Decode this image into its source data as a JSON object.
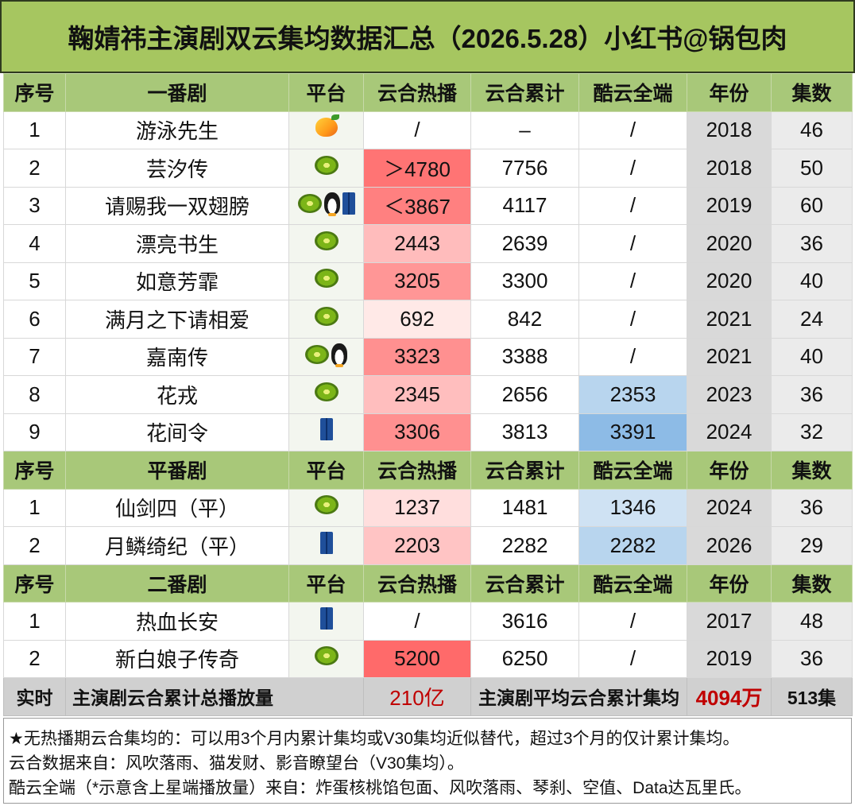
{
  "title": "鞠婧祎主演剧双云集均数据汇总（2026.5.28）小红书@锅包肉",
  "colors": {
    "title_bg": "#a6c660",
    "header_bg": "#a8c879",
    "heat_scale": [
      "#ffe9e7",
      "#ffc4c4",
      "#ff9b9b",
      "#ff7474"
    ],
    "ku_scale": [
      "#cfe2f3",
      "#b4d3ee",
      "#8dbbe6"
    ],
    "total_row_bg": "#d0d0d0",
    "total_red": "#c00000"
  },
  "headers": {
    "idx": "序号",
    "platform": "平台",
    "heat": "云合热播",
    "total": "云合累计",
    "ku": "酷云全端",
    "year": "年份",
    "episodes": "集数"
  },
  "sections": [
    {
      "label": "一番剧",
      "rows": [
        {
          "idx": "1",
          "name": "游泳先生",
          "platform": [
            "mango-icon"
          ],
          "heat": "/",
          "heat_bg": "#ffffff",
          "total": "–",
          "ku": "/",
          "ku_bg": "#ffffff",
          "year": "2018",
          "episodes": "46"
        },
        {
          "idx": "2",
          "name": "芸汐传",
          "platform": [
            "kiwi-icon"
          ],
          "heat": "＞4780",
          "heat_bg": "#ff7474",
          "total": "7756",
          "ku": "/",
          "ku_bg": "#ffffff",
          "year": "2018",
          "episodes": "50"
        },
        {
          "idx": "3",
          "name": "请赐我一双翅膀",
          "platform": [
            "kiwi-icon",
            "penguin-icon",
            "jeans-icon"
          ],
          "heat": "＜3867",
          "heat_bg": "#ff8080",
          "total": "4117",
          "ku": "/",
          "ku_bg": "#ffffff",
          "year": "2019",
          "episodes": "60"
        },
        {
          "idx": "4",
          "name": "漂亮书生",
          "platform": [
            "kiwi-icon"
          ],
          "heat": "2443",
          "heat_bg": "#ffbcbc",
          "total": "2639",
          "ku": "/",
          "ku_bg": "#ffffff",
          "year": "2020",
          "episodes": "36"
        },
        {
          "idx": "5",
          "name": "如意芳霏",
          "platform": [
            "kiwi-icon"
          ],
          "heat": "3205",
          "heat_bg": "#ff9696",
          "total": "3300",
          "ku": "/",
          "ku_bg": "#ffffff",
          "year": "2020",
          "episodes": "40"
        },
        {
          "idx": "6",
          "name": "满月之下请相爱",
          "platform": [
            "kiwi-icon"
          ],
          "heat": "692",
          "heat_bg": "#ffe9e7",
          "total": "842",
          "ku": "/",
          "ku_bg": "#ffffff",
          "year": "2021",
          "episodes": "24"
        },
        {
          "idx": "7",
          "name": "嘉南传",
          "platform": [
            "kiwi-icon",
            "penguin-icon"
          ],
          "heat": "3323",
          "heat_bg": "#ff9090",
          "total": "3388",
          "ku": "/",
          "ku_bg": "#ffffff",
          "year": "2021",
          "episodes": "40"
        },
        {
          "idx": "8",
          "name": "花戎",
          "platform": [
            "kiwi-icon"
          ],
          "heat": "2345",
          "heat_bg": "#ffbebe",
          "total": "2656",
          "ku": "2353",
          "ku_bg": "#b8d5ee",
          "year": "2023",
          "episodes": "36"
        },
        {
          "idx": "9",
          "name": "花间令",
          "platform": [
            "jeans-icon"
          ],
          "heat": "3306",
          "heat_bg": "#ff9090",
          "total": "3813",
          "ku": "3391",
          "ku_bg": "#8dbbe6",
          "year": "2024",
          "episodes": "32"
        }
      ]
    },
    {
      "label": "平番剧",
      "rows": [
        {
          "idx": "1",
          "name": "仙剑四（平）",
          "platform": [
            "kiwi-icon"
          ],
          "heat": "1237",
          "heat_bg": "#ffdedd",
          "total": "1481",
          "ku": "1346",
          "ku_bg": "#cfe2f3",
          "year": "2024",
          "episodes": "36"
        },
        {
          "idx": "2",
          "name": "月鳞绮纪（平）",
          "platform": [
            "jeans-icon"
          ],
          "heat": "2203",
          "heat_bg": "#ffc4c4",
          "total": "2282",
          "ku": "2282",
          "ku_bg": "#b8d5ee",
          "year": "2026",
          "episodes": "29"
        }
      ]
    },
    {
      "label": "二番剧",
      "rows": [
        {
          "idx": "1",
          "name": "热血长安",
          "platform": [
            "jeans-icon"
          ],
          "heat": "/",
          "heat_bg": "#ffffff",
          "total": "3616",
          "ku": "/",
          "ku_bg": "#ffffff",
          "year": "2017",
          "episodes": "48"
        },
        {
          "idx": "2",
          "name": "新白娘子传奇",
          "platform": [
            "kiwi-icon"
          ],
          "heat": "5200",
          "heat_bg": "#ff6a6a",
          "total": "6250",
          "ku": "/",
          "ku_bg": "#ffffff",
          "year": "2019",
          "episodes": "36"
        }
      ]
    }
  ],
  "summary": {
    "label": "实时",
    "total_label": "主演剧云合累计总播放量",
    "total_value": "210亿",
    "avg_label": "主演剧平均云合累计集均",
    "avg_value": "4094万",
    "episodes_value": "513集"
  },
  "notes": [
    "★无热播期云合集均的：可以用3个月内累计集均或V30集均近似替代，超过3个月的仅计累计集均。",
    "云合数据来自：风吹落雨、猫发财、影音瞭望台（V30集均）。",
    "酷云全端（*示意含上星端播放量）来自：炸蛋核桃馅包面、风吹落雨、琴刹、空值、Data达瓦里氏。"
  ]
}
